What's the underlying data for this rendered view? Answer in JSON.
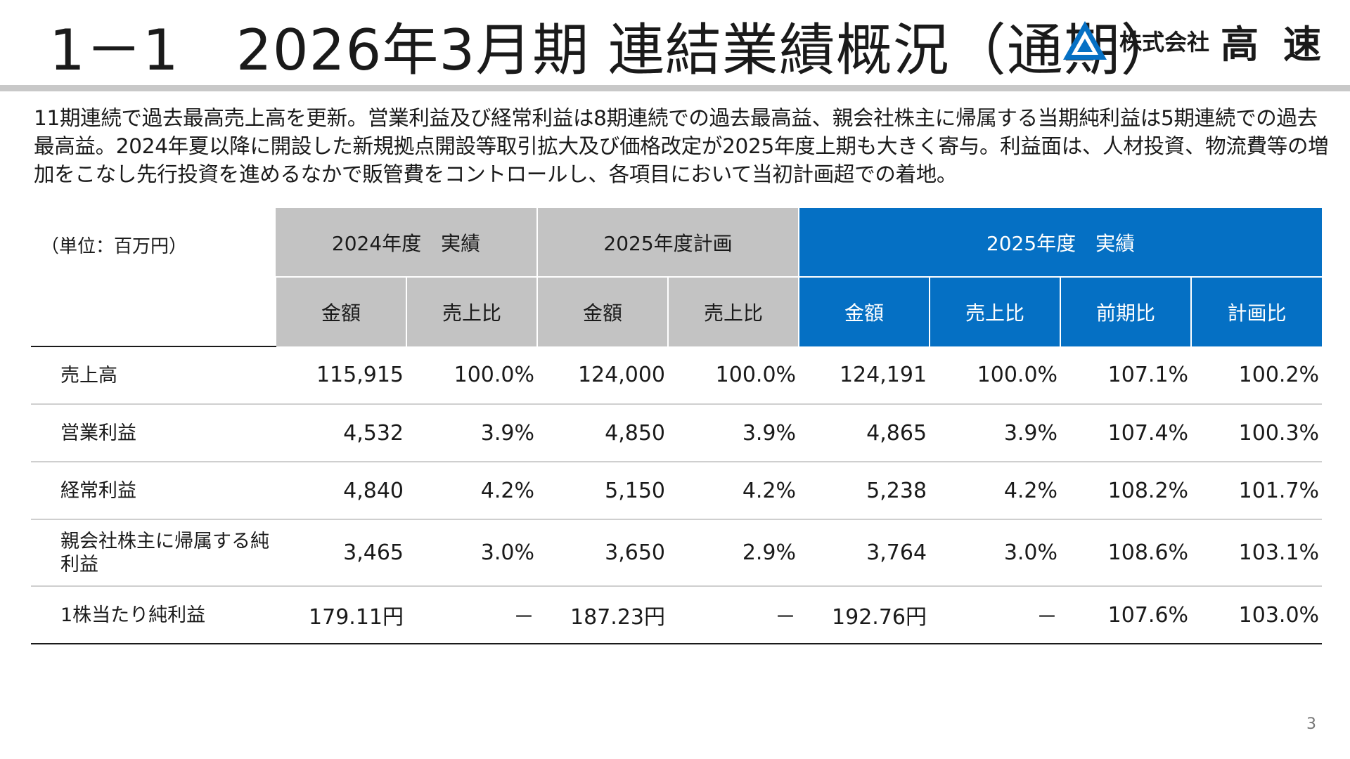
{
  "header": {
    "title": "1－1　2026年3月期 連結業績概況（通期）",
    "logo": {
      "company_label": "株式会社",
      "name": "高 速",
      "mark_icon": "triangle-logo-icon",
      "color": "#0570c4"
    }
  },
  "summary": "11期連続で過去最高売上高を更新。営業利益及び経常利益は8期連続での過去最高益、親会社株主に帰属する当期純利益は5期連続での過去最高益。2024年夏以降に開設した新規拠点開設等取引拡大及び価格改定が2025年度上期も大きく寄与。利益面は、人材投資、物流費等の増加をこなし先行投資を進めるなかで販管費をコントロールし、各項目において当初計画超での着地。",
  "table": {
    "unit_label": "（単位：百万円）",
    "group_headers": [
      "2024年度　実績",
      "2025年度計画",
      "2025年度　実績"
    ],
    "sub_headers": [
      "金額",
      "売上比",
      "金額",
      "売上比",
      "金額",
      "売上比",
      "前期比",
      "計画比"
    ],
    "rows": [
      {
        "label": "売上高",
        "cells": [
          "115,915",
          "100.0%",
          "124,000",
          "100.0%",
          "124,191",
          "100.0%",
          "107.1%",
          "100.2%"
        ]
      },
      {
        "label": "営業利益",
        "cells": [
          "4,532",
          "3.9%",
          "4,850",
          "3.9%",
          "4,865",
          "3.9%",
          "107.4%",
          "100.3%"
        ]
      },
      {
        "label": "経常利益",
        "cells": [
          "4,840",
          "4.2%",
          "5,150",
          "4.2%",
          "5,238",
          "4.2%",
          "108.2%",
          "101.7%"
        ]
      },
      {
        "label": "親会社株主に帰属する純利益",
        "cells": [
          "3,465",
          "3.0%",
          "3,650",
          "2.9%",
          "3,764",
          "3.0%",
          "108.6%",
          "103.1%"
        ]
      },
      {
        "label": "1株当たり純利益",
        "cells": [
          "179.11円",
          "－",
          "187.23円",
          "－",
          "192.76円",
          "－",
          "107.6%",
          "103.0%"
        ]
      }
    ]
  },
  "page_number": "3",
  "colors": {
    "header_gray": "#c3c3c3",
    "header_blue": "#0570c4",
    "title_rule": "#c8c8c8"
  }
}
